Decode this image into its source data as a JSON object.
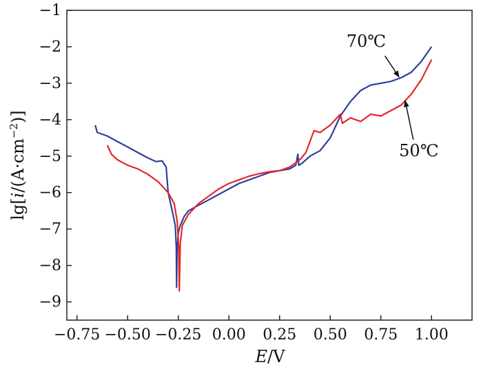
{
  "chart_data": {
    "type": "line",
    "title": "",
    "xlabel": {
      "italic": "E",
      "rest": "/V"
    },
    "ylabel": {
      "pre": "lg[",
      "italic": "i",
      "mid": "/(A·cm",
      "sup": "−2",
      "post": ")]"
    },
    "xlim": [
      -0.8,
      1.2
    ],
    "ylim": [
      -9.5,
      -1
    ],
    "xticks": [
      -0.75,
      -0.5,
      -0.25,
      0.0,
      0.25,
      0.5,
      0.75,
      1.0
    ],
    "xtick_labels": [
      "−0.75",
      "−0.50",
      "−0.25",
      "0.00",
      "0.25",
      "0.50",
      "0.75",
      "1.00"
    ],
    "yticks": [
      -9,
      -8,
      -7,
      -6,
      -5,
      -4,
      -3,
      -2,
      -1
    ],
    "ytick_labels": [
      "−9",
      "−8",
      "−7",
      "−6",
      "−5",
      "−4",
      "−3",
      "−2",
      "−1"
    ],
    "grid": false,
    "series": [
      {
        "name": "70℃",
        "color": "#2b3f9e",
        "points": [
          [
            -0.66,
            -4.15
          ],
          [
            -0.65,
            -4.35
          ],
          [
            -0.6,
            -4.45
          ],
          [
            -0.55,
            -4.6
          ],
          [
            -0.5,
            -4.75
          ],
          [
            -0.45,
            -4.9
          ],
          [
            -0.4,
            -5.05
          ],
          [
            -0.36,
            -5.15
          ],
          [
            -0.33,
            -5.13
          ],
          [
            -0.31,
            -5.3
          ],
          [
            -0.3,
            -6.0
          ],
          [
            -0.28,
            -6.5
          ],
          [
            -0.265,
            -6.9
          ],
          [
            -0.26,
            -7.5
          ],
          [
            -0.258,
            -8.6
          ],
          [
            -0.256,
            -7.6
          ],
          [
            -0.25,
            -7.1
          ],
          [
            -0.24,
            -6.9
          ],
          [
            -0.22,
            -6.65
          ],
          [
            -0.2,
            -6.5
          ],
          [
            -0.15,
            -6.35
          ],
          [
            -0.1,
            -6.2
          ],
          [
            -0.05,
            -6.05
          ],
          [
            0.0,
            -5.9
          ],
          [
            0.05,
            -5.75
          ],
          [
            0.1,
            -5.65
          ],
          [
            0.15,
            -5.55
          ],
          [
            0.2,
            -5.45
          ],
          [
            0.25,
            -5.4
          ],
          [
            0.3,
            -5.35
          ],
          [
            0.33,
            -5.25
          ],
          [
            0.34,
            -4.95
          ],
          [
            0.345,
            -5.25
          ],
          [
            0.36,
            -5.2
          ],
          [
            0.4,
            -5.0
          ],
          [
            0.45,
            -4.85
          ],
          [
            0.5,
            -4.5
          ],
          [
            0.55,
            -3.9
          ],
          [
            0.6,
            -3.5
          ],
          [
            0.65,
            -3.2
          ],
          [
            0.7,
            -3.05
          ],
          [
            0.75,
            -3.0
          ],
          [
            0.8,
            -2.95
          ],
          [
            0.85,
            -2.85
          ],
          [
            0.9,
            -2.7
          ],
          [
            0.95,
            -2.4
          ],
          [
            1.0,
            -2.0
          ]
        ]
      },
      {
        "name": "50℃",
        "color": "#e52529",
        "points": [
          [
            -0.6,
            -4.7
          ],
          [
            -0.58,
            -4.95
          ],
          [
            -0.55,
            -5.1
          ],
          [
            -0.5,
            -5.25
          ],
          [
            -0.45,
            -5.35
          ],
          [
            -0.4,
            -5.5
          ],
          [
            -0.35,
            -5.7
          ],
          [
            -0.3,
            -6.0
          ],
          [
            -0.27,
            -6.3
          ],
          [
            -0.255,
            -6.8
          ],
          [
            -0.248,
            -7.5
          ],
          [
            -0.245,
            -8.7
          ],
          [
            -0.24,
            -7.4
          ],
          [
            -0.23,
            -6.9
          ],
          [
            -0.2,
            -6.6
          ],
          [
            -0.15,
            -6.3
          ],
          [
            -0.1,
            -6.1
          ],
          [
            -0.05,
            -5.9
          ],
          [
            0.0,
            -5.75
          ],
          [
            0.05,
            -5.65
          ],
          [
            0.1,
            -5.55
          ],
          [
            0.15,
            -5.48
          ],
          [
            0.2,
            -5.43
          ],
          [
            0.25,
            -5.4
          ],
          [
            0.3,
            -5.3
          ],
          [
            0.35,
            -5.1
          ],
          [
            0.38,
            -4.9
          ],
          [
            0.4,
            -4.6
          ],
          [
            0.42,
            -4.3
          ],
          [
            0.45,
            -4.35
          ],
          [
            0.5,
            -4.15
          ],
          [
            0.55,
            -3.85
          ],
          [
            0.56,
            -4.1
          ],
          [
            0.6,
            -3.95
          ],
          [
            0.65,
            -4.05
          ],
          [
            0.7,
            -3.85
          ],
          [
            0.75,
            -3.9
          ],
          [
            0.8,
            -3.75
          ],
          [
            0.85,
            -3.6
          ],
          [
            0.9,
            -3.3
          ],
          [
            0.95,
            -2.9
          ],
          [
            1.0,
            -2.35
          ]
        ]
      }
    ],
    "annotations": [
      {
        "id": "70",
        "text": "70℃",
        "text_at": [
          0.58,
          -2.0
        ],
        "arrow_from": [
          0.77,
          -2.25
        ],
        "arrow_to": [
          0.84,
          -2.83
        ]
      },
      {
        "id": "50",
        "text": "50℃",
        "text_at": [
          0.84,
          -5.0
        ],
        "arrow_from": [
          0.91,
          -4.55
        ],
        "arrow_to": [
          0.87,
          -3.48
        ]
      }
    ]
  }
}
